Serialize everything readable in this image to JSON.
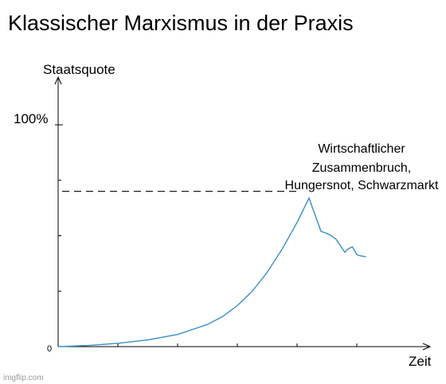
{
  "chart_data": {
    "type": "line",
    "title": "Klassischer Marxismus in der Praxis",
    "xlabel": "Zeit",
    "ylabel": "Staatsquote",
    "y_tick_label": "100%",
    "origin_label": "0",
    "ylim": [
      0,
      100
    ],
    "xlim": [
      0,
      100
    ],
    "grid": false,
    "legend": "none",
    "line_color": "#3a8fc8",
    "reference_line": {
      "y": 70,
      "style": "dashed",
      "color": "#000000"
    },
    "annotation": [
      "Wirtschaftlicher",
      "Zusammenbruch,",
      "Hungersnot, Schwarzmarkt"
    ],
    "series": [
      {
        "x": [
          0,
          10,
          20,
          30,
          40,
          50,
          55,
          60,
          65,
          70,
          75,
          80,
          84,
          88,
          90,
          91.5,
          93,
          96,
          97,
          98.5,
          100,
          101,
          103
        ],
        "y": [
          0,
          0.5,
          1.5,
          3,
          5.5,
          10,
          13.5,
          18.5,
          25,
          33.5,
          44,
          56,
          67,
          52,
          51,
          50,
          48.5,
          42.5,
          44,
          45,
          41.5,
          41,
          40.5
        ]
      }
    ],
    "watermark": "imgflip.com"
  }
}
